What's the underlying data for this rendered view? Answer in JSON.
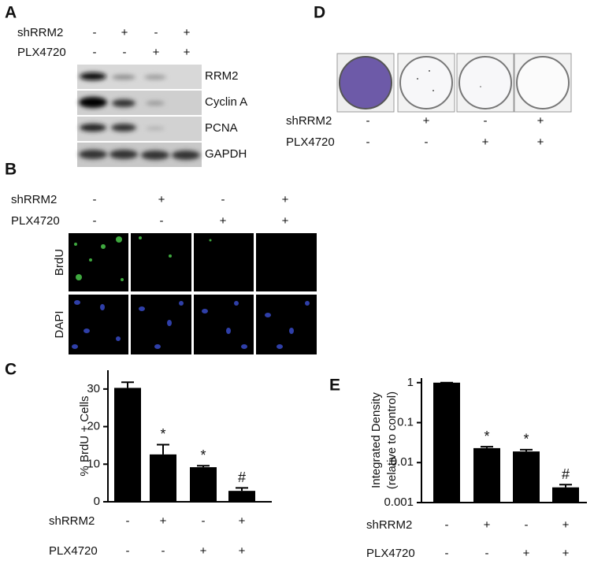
{
  "panels": {
    "a": {
      "label": "A",
      "conditions": [
        {
          "name": "shRRM2",
          "signs": [
            "-",
            "+",
            "-",
            "+"
          ]
        },
        {
          "name": "PLX4720",
          "signs": [
            "-",
            "-",
            "+",
            "+"
          ]
        }
      ],
      "blots": [
        "RRM2",
        "Cyclin A",
        "PCNA",
        "GAPDH"
      ]
    },
    "b": {
      "label": "B",
      "conditions": [
        {
          "name": "shRRM2",
          "signs": [
            "-",
            "+",
            "-",
            "+"
          ]
        },
        {
          "name": "PLX4720",
          "signs": [
            "-",
            "-",
            "+",
            "+"
          ]
        }
      ],
      "stains": [
        "BrdU",
        "DAPI"
      ]
    },
    "d": {
      "label": "D",
      "conditions": [
        {
          "name": "shRRM2",
          "signs": [
            "-",
            "+",
            "-",
            "+"
          ]
        },
        {
          "name": "PLX4720",
          "signs": [
            "-",
            "-",
            "+",
            "+"
          ]
        }
      ]
    }
  },
  "chart_data": [
    {
      "type": "bar",
      "label": "C",
      "ylabel": [
        "% BrdU + Cells"
      ],
      "categories": [
        null,
        null,
        null,
        null
      ],
      "conditions": [
        {
          "name": "shRRM2",
          "signs": [
            "-",
            "+",
            "-",
            "+"
          ]
        },
        {
          "name": "PLX4720",
          "signs": [
            "-",
            "-",
            "+",
            "+"
          ]
        }
      ],
      "values": [
        30.3,
        12.6,
        9.2,
        2.9
      ],
      "errors": [
        1.5,
        2.6,
        0.4,
        0.8
      ],
      "markers": [
        null,
        "*",
        "*",
        "#"
      ],
      "color": "#000000",
      "ylim": [
        0,
        35
      ],
      "yticks": [
        0,
        10,
        20,
        30
      ],
      "log_y": false
    },
    {
      "type": "bar",
      "label": "E",
      "ylabel": [
        "Integrated Density",
        "(relative to control)"
      ],
      "categories": [
        null,
        null,
        null,
        null
      ],
      "conditions": [
        {
          "name": "shRRM2",
          "signs": [
            "-",
            "+",
            "-",
            "+"
          ]
        },
        {
          "name": "PLX4720",
          "signs": [
            "-",
            "-",
            "+",
            "+"
          ]
        }
      ],
      "values": [
        1,
        0.023,
        0.019,
        0.0024
      ],
      "errors": [
        0,
        0.002,
        0.002,
        0.0004
      ],
      "markers": [
        null,
        "*",
        "*",
        "#"
      ],
      "color": "#000000",
      "ylim": [
        0.001,
        1.3
      ],
      "yticks": [
        0.001,
        0.01,
        0.1,
        1
      ],
      "log_y": true
    }
  ]
}
